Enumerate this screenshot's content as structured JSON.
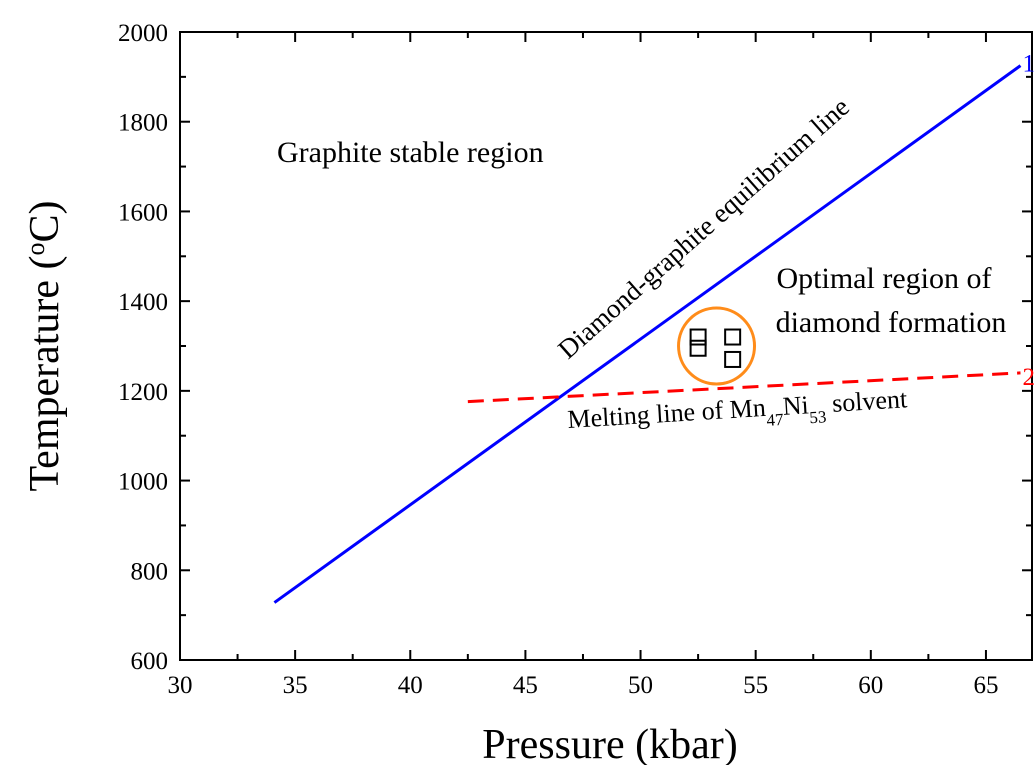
{
  "chart_data": {
    "type": "line",
    "xlabel": "Pressure (kbar)",
    "ylabel": {
      "main": "Temperature (",
      "sup": "o",
      "unit": "C)"
    },
    "xlim": [
      30,
      67
    ],
    "ylim": [
      600,
      2000
    ],
    "x_ticks": [
      30,
      35,
      40,
      45,
      50,
      55,
      60,
      65
    ],
    "y_ticks": [
      600,
      800,
      1000,
      1200,
      1400,
      1600,
      1800,
      2000
    ],
    "x_minor_step": 2.5,
    "y_minor_step": 100,
    "grid": false,
    "series": [
      {
        "label": "1",
        "style": "solid",
        "color": "#0000ff",
        "x": [
          34.1,
          66.5
        ],
        "y": [
          728,
          1925
        ]
      },
      {
        "label": "2",
        "style": "dashed",
        "color": "#ff0000",
        "x": [
          42.5,
          66.5
        ],
        "y": [
          1176,
          1240
        ]
      }
    ],
    "points": {
      "marker": "open-square",
      "x": [
        52.5,
        52.5,
        54.0,
        54.0
      ],
      "y": [
        1320,
        1295,
        1320,
        1270
      ]
    },
    "circle": {
      "color": "#ff8c1a",
      "cx": 53.3,
      "cy": 1300,
      "r_x_units": 1.65
    },
    "annotations": {
      "graphite_region": "Graphite stable region",
      "equilibrium_line": "Diamond-graphite equilibrium line",
      "optimal_line1": "Optimal region of",
      "optimal_line2": "diamond formation",
      "melting": {
        "prefix": "Melting line of Mn",
        "sub1": "47",
        "mid": "Ni",
        "sub2": "53",
        "suffix": " solvent"
      }
    }
  }
}
